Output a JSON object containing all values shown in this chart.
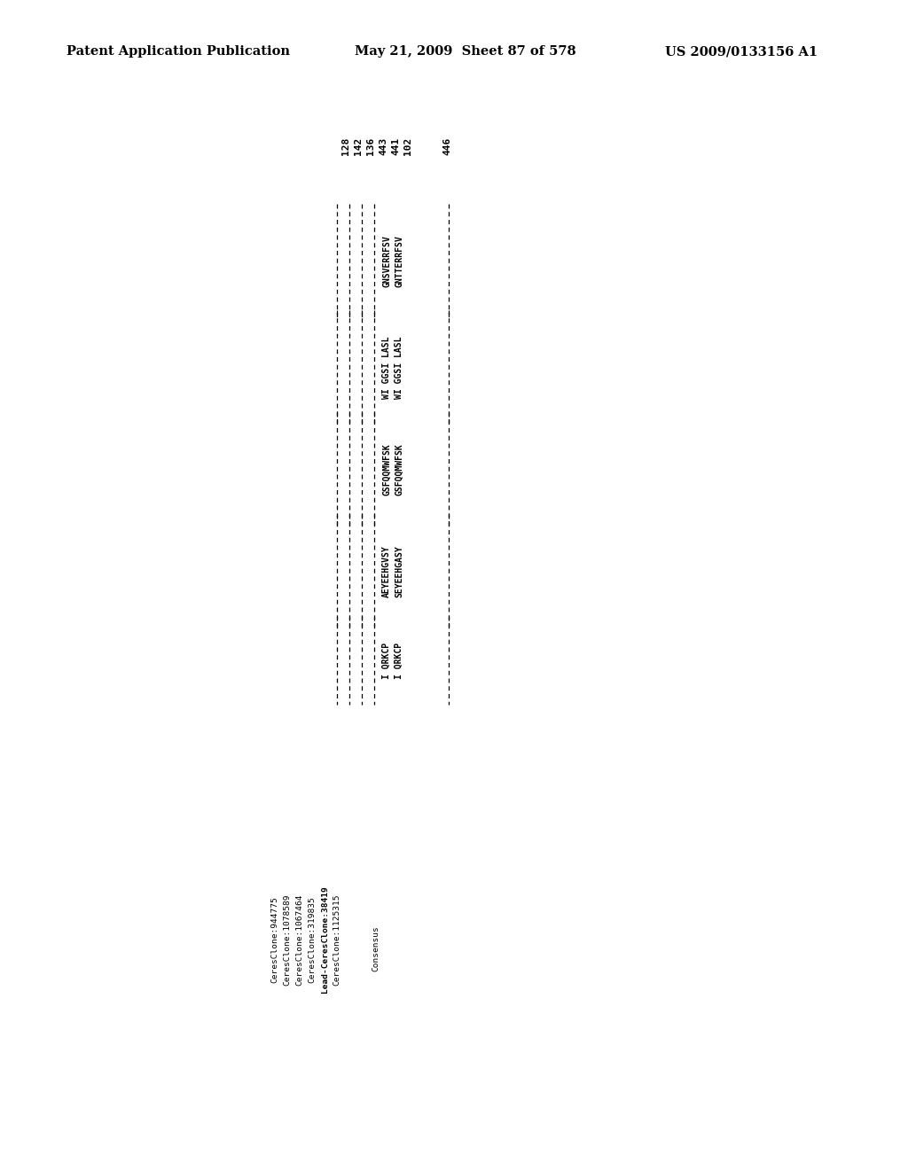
{
  "header_left": "Patent Application Publication",
  "header_mid": "May 21, 2009  Sheet 87 of 578",
  "header_right": "US 2009/0133156 A1",
  "header_fontsize": 10.5,
  "bg_color": "#ffffff",
  "col_nums_group1": [
    "128",
    "142",
    "136",
    "443",
    "441",
    "102"
  ],
  "col_num_group2": "446",
  "n_seq_rows": 6,
  "n_dash_rows": 4,
  "seqs_row4": [
    "GNSVERRFSV",
    "WI GGSI LASL",
    "GSFQQMWFSK",
    "AEYEEHGVSY",
    "I QRKCP"
  ],
  "seqs_row5": [
    "GNTTERRFSV",
    "WI GGSI LASL",
    "GSFQQMWFSK",
    "SEYEEHGASY",
    "I QRKCP"
  ],
  "legend_entries": [
    "CeresClone:944775",
    "CeresClone:1078589",
    "CeresClone:1067464",
    "CeresClone:319835",
    "Lead-CeresClone:38419",
    "CeresClone:1125315"
  ],
  "consensus_label": "Consensus",
  "seq_fontsize": 7.0,
  "legend_fontsize": 6.8,
  "num_fontsize": 8.0
}
